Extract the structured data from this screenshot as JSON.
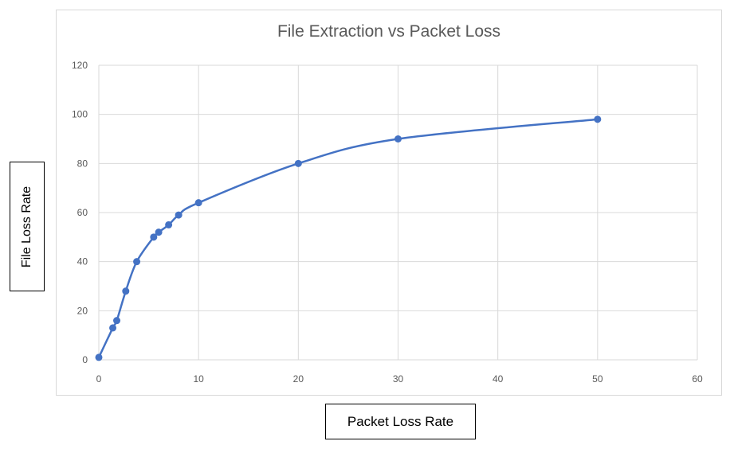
{
  "chart_data": {
    "type": "line",
    "title": "File Extraction vs Packet Loss",
    "xlabel": "Packet Loss Rate",
    "ylabel": "File Loss Rate",
    "xlim": [
      0,
      60
    ],
    "ylim": [
      0,
      120
    ],
    "xticks": [
      "0",
      "10",
      "20",
      "30",
      "40",
      "50",
      "60"
    ],
    "yticks": [
      "0",
      "20",
      "40",
      "60",
      "80",
      "100",
      "120"
    ],
    "grid": true,
    "smooth": true,
    "color": "#4472c4",
    "series": [
      {
        "x": [
          0,
          1.4,
          1.8,
          2.7,
          3.8,
          5.5,
          6,
          7,
          8,
          10,
          20,
          30,
          50
        ],
        "y": [
          1,
          13,
          16,
          28,
          40,
          50,
          52,
          55,
          59,
          64,
          80,
          90,
          98
        ]
      }
    ]
  }
}
